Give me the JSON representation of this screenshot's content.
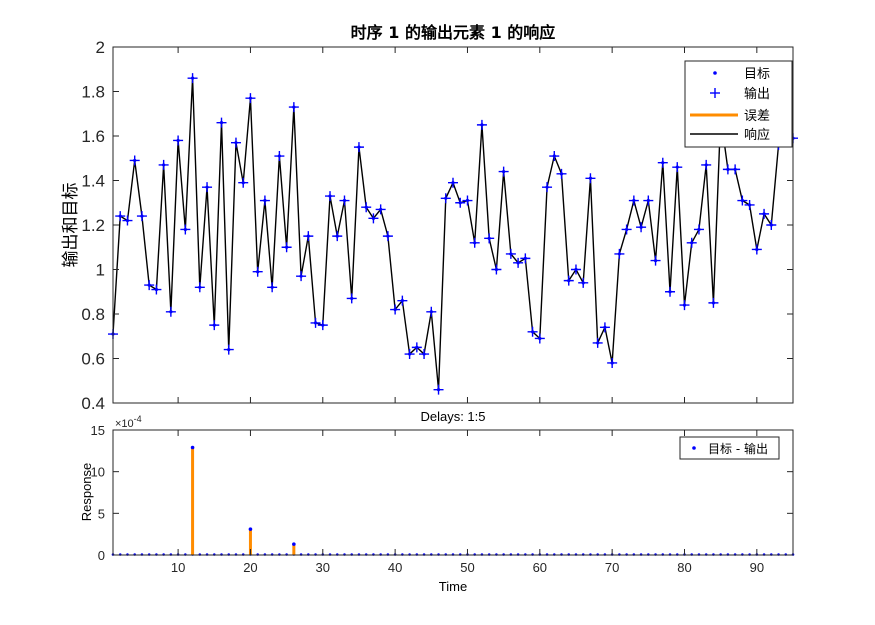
{
  "chart_data": [
    {
      "type": "line",
      "title_prefix": "时序",
      "title_num1": "1",
      "title_middle": "的输出元素",
      "title_num2": "1",
      "title_suffix": "的响应",
      "ylabel": "输出和目标",
      "xlim": [
        1,
        95
      ],
      "ylim": [
        0.4,
        2
      ],
      "yticks": [
        "0.4",
        "0.6",
        "0.8",
        "1",
        "1.2",
        "1.4",
        "1.6",
        "1.8",
        "2"
      ],
      "legend_position": "top-right",
      "legend": [
        "目标",
        "输出",
        "误差",
        "响应"
      ],
      "series": [
        {
          "name": "目标",
          "color": "#0000ff",
          "values": [
            0.71,
            1.24,
            1.22,
            1.49,
            1.24,
            0.93,
            0.91,
            1.47,
            0.81,
            1.58,
            1.18,
            1.86,
            0.92,
            1.37,
            0.75,
            1.66,
            0.64,
            1.57,
            1.39,
            1.77,
            0.99,
            1.31,
            0.92,
            1.51,
            1.1,
            1.73,
            0.97,
            1.15,
            0.76,
            0.75,
            1.33,
            1.15,
            1.31,
            0.87,
            1.55,
            1.28,
            1.23,
            1.27,
            1.15,
            0.82,
            0.86,
            0.62,
            0.65,
            0.62,
            0.81,
            0.46,
            1.32,
            1.39,
            1.3,
            1.31,
            1.12,
            1.65,
            1.14,
            1.0,
            1.44,
            1.07,
            1.03,
            1.05,
            0.72,
            0.69,
            1.37,
            1.51,
            1.43,
            0.95,
            1.0,
            0.94,
            1.41,
            0.67,
            0.74,
            0.58,
            1.07,
            1.18,
            1.31,
            1.19,
            1.31,
            1.04,
            1.48,
            0.9,
            1.46,
            0.84,
            1.12,
            1.18,
            1.47,
            0.85,
            1.69,
            1.45,
            1.45,
            1.31,
            1.29,
            1.09,
            1.25,
            1.2,
            1.56,
            1.59,
            1.59
          ]
        },
        {
          "name": "输出",
          "color": "#0000ff",
          "values": [
            0.71,
            1.24,
            1.22,
            1.49,
            1.24,
            0.93,
            0.91,
            1.47,
            0.81,
            1.58,
            1.18,
            1.86,
            0.92,
            1.37,
            0.75,
            1.66,
            0.64,
            1.57,
            1.39,
            1.77,
            0.99,
            1.31,
            0.92,
            1.51,
            1.1,
            1.73,
            0.97,
            1.15,
            0.76,
            0.75,
            1.33,
            1.15,
            1.31,
            0.87,
            1.55,
            1.28,
            1.23,
            1.27,
            1.15,
            0.82,
            0.86,
            0.62,
            0.65,
            0.62,
            0.81,
            0.46,
            1.32,
            1.39,
            1.3,
            1.31,
            1.12,
            1.65,
            1.14,
            1.0,
            1.44,
            1.07,
            1.03,
            1.05,
            0.72,
            0.69,
            1.37,
            1.51,
            1.43,
            0.95,
            1.0,
            0.94,
            1.41,
            0.67,
            0.74,
            0.58,
            1.07,
            1.18,
            1.31,
            1.19,
            1.31,
            1.04,
            1.48,
            0.9,
            1.46,
            0.84,
            1.12,
            1.18,
            1.47,
            0.85,
            1.69,
            1.45,
            1.45,
            1.31,
            1.29,
            1.09,
            1.25,
            1.2,
            1.56,
            1.59,
            1.59
          ]
        }
      ],
      "colors": {
        "target": "#0000ff",
        "output": "#0000ff",
        "error": "#ff8c00",
        "response": "#000000"
      }
    },
    {
      "type": "bar",
      "title": "Delays: 1:5",
      "xlabel": "Time",
      "ylabel": "Response",
      "exponent": "×10^-4",
      "exponent_base": "×10",
      "exponent_power": "-4",
      "xlim": [
        1,
        95
      ],
      "ylim": [
        0,
        15
      ],
      "xticks": [
        "10",
        "20",
        "30",
        "40",
        "50",
        "60",
        "70",
        "80",
        "90"
      ],
      "yticks": [
        "0",
        "5",
        "10",
        "15"
      ],
      "legend_position": "top-right",
      "legend": [
        "目标 - 输出"
      ],
      "series": [
        {
          "name": "目标 - 输出",
          "x": [
            12,
            20,
            26
          ],
          "values": [
            12.9,
            3.1,
            1.3
          ]
        }
      ],
      "colors": {
        "error": "#ff8c00",
        "point": "#0000ff"
      }
    }
  ]
}
